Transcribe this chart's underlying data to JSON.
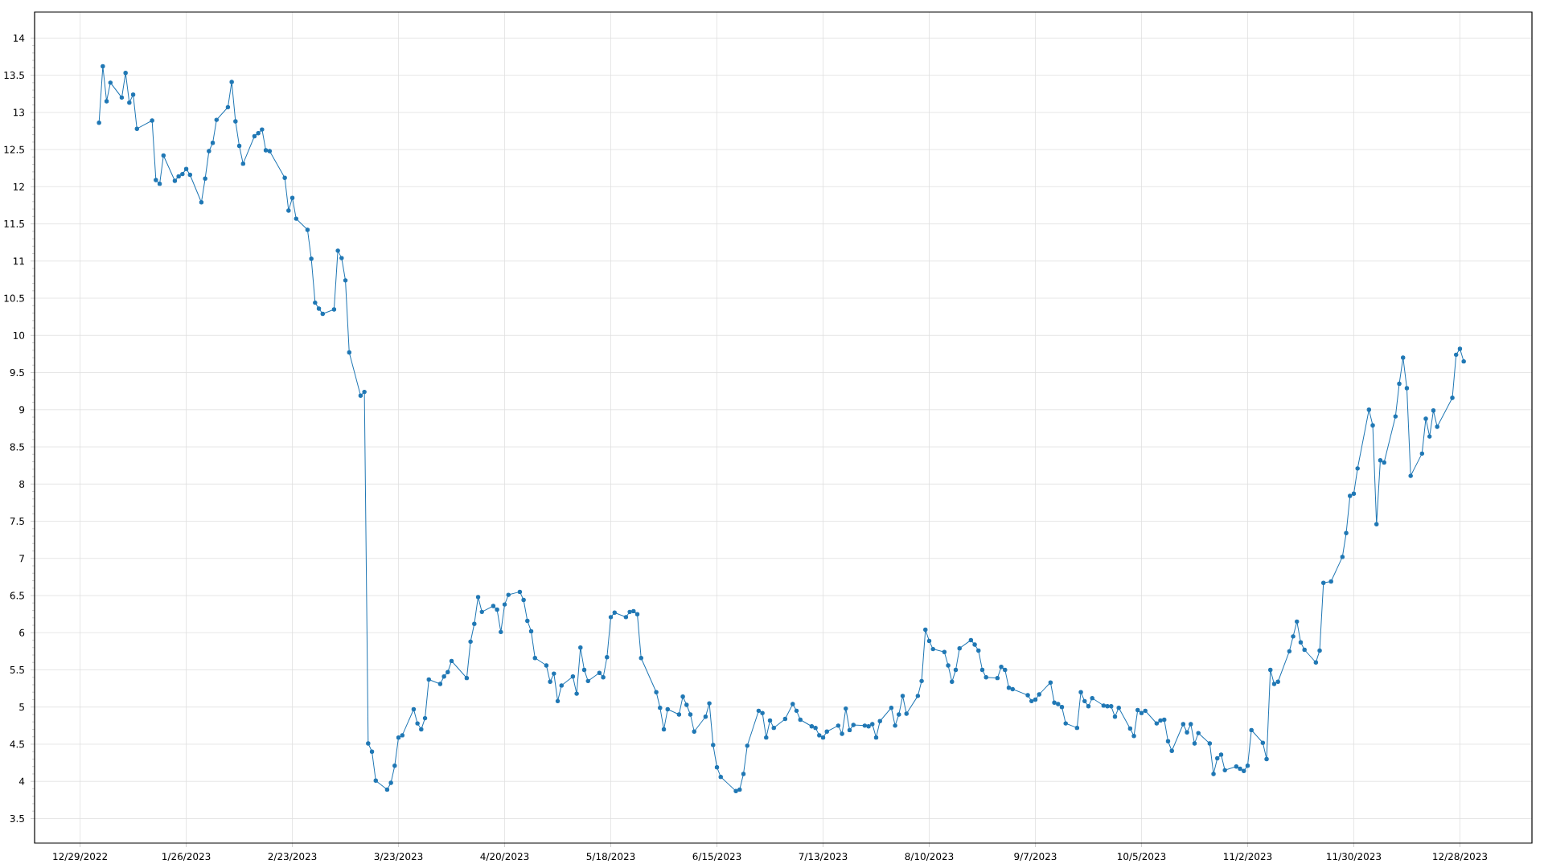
{
  "chart_data": {
    "type": "line",
    "color": "#1f77b4",
    "marker": "circle",
    "line_style": "solid",
    "grid": true,
    "xlim": [
      "2022-12-17",
      "2024-01-16"
    ],
    "ylim": [
      3.17,
      14.35
    ],
    "xticks": [
      {
        "value": "2022-12-29",
        "label": "12/29/2022"
      },
      {
        "value": "2023-01-26",
        "label": "1/26/2023"
      },
      {
        "value": "2023-02-23",
        "label": "2/23/2023"
      },
      {
        "value": "2023-03-23",
        "label": "3/23/2023"
      },
      {
        "value": "2023-04-20",
        "label": "4/20/2023"
      },
      {
        "value": "2023-05-18",
        "label": "5/18/2023"
      },
      {
        "value": "2023-06-15",
        "label": "6/15/2023"
      },
      {
        "value": "2023-07-13",
        "label": "7/13/2023"
      },
      {
        "value": "2023-08-10",
        "label": "8/10/2023"
      },
      {
        "value": "2023-09-07",
        "label": "9/7/2023"
      },
      {
        "value": "2023-10-05",
        "label": "10/5/2023"
      },
      {
        "value": "2023-11-02",
        "label": "11/2/2023"
      },
      {
        "value": "2023-11-30",
        "label": "11/30/2023"
      },
      {
        "value": "2023-12-28",
        "label": "12/28/2023"
      }
    ],
    "yticks": [
      3.5,
      4,
      4.5,
      5,
      5.5,
      6,
      6.5,
      7,
      7.5,
      8,
      8.5,
      9,
      9.5,
      10,
      10.5,
      11,
      11.5,
      12,
      12.5,
      13,
      13.5,
      14
    ],
    "x": [
      "2023-01-03",
      "2023-01-04",
      "2023-01-05",
      "2023-01-06",
      "2023-01-09",
      "2023-01-10",
      "2023-01-11",
      "2023-01-12",
      "2023-01-13",
      "2023-01-17",
      "2023-01-18",
      "2023-01-19",
      "2023-01-20",
      "2023-01-23",
      "2023-01-24",
      "2023-01-25",
      "2023-01-26",
      "2023-01-27",
      "2023-01-30",
      "2023-01-31",
      "2023-02-01",
      "2023-02-02",
      "2023-02-03",
      "2023-02-06",
      "2023-02-07",
      "2023-02-08",
      "2023-02-09",
      "2023-02-10",
      "2023-02-13",
      "2023-02-14",
      "2023-02-15",
      "2023-02-16",
      "2023-02-17",
      "2023-02-21",
      "2023-02-22",
      "2023-02-23",
      "2023-02-24",
      "2023-02-27",
      "2023-02-28",
      "2023-03-01",
      "2023-03-02",
      "2023-03-03",
      "2023-03-06",
      "2023-03-07",
      "2023-03-08",
      "2023-03-09",
      "2023-03-10",
      "2023-03-13",
      "2023-03-14",
      "2023-03-15",
      "2023-03-16",
      "2023-03-17",
      "2023-03-20",
      "2023-03-21",
      "2023-03-22",
      "2023-03-23",
      "2023-03-24",
      "2023-03-27",
      "2023-03-28",
      "2023-03-29",
      "2023-03-30",
      "2023-03-31",
      "2023-04-03",
      "2023-04-04",
      "2023-04-05",
      "2023-04-06",
      "2023-04-10",
      "2023-04-11",
      "2023-04-12",
      "2023-04-13",
      "2023-04-14",
      "2023-04-17",
      "2023-04-18",
      "2023-04-19",
      "2023-04-20",
      "2023-04-21",
      "2023-04-24",
      "2023-04-25",
      "2023-04-26",
      "2023-04-27",
      "2023-04-28",
      "2023-05-01",
      "2023-05-02",
      "2023-05-03",
      "2023-05-04",
      "2023-05-05",
      "2023-05-08",
      "2023-05-09",
      "2023-05-10",
      "2023-05-11",
      "2023-05-12",
      "2023-05-15",
      "2023-05-16",
      "2023-05-17",
      "2023-05-18",
      "2023-05-19",
      "2023-05-22",
      "2023-05-23",
      "2023-05-24",
      "2023-05-25",
      "2023-05-26",
      "2023-05-30",
      "2023-05-31",
      "2023-06-01",
      "2023-06-02",
      "2023-06-05",
      "2023-06-06",
      "2023-06-07",
      "2023-06-08",
      "2023-06-09",
      "2023-06-12",
      "2023-06-13",
      "2023-06-14",
      "2023-06-15",
      "2023-06-16",
      "2023-06-20",
      "2023-06-21",
      "2023-06-22",
      "2023-06-23",
      "2023-06-26",
      "2023-06-27",
      "2023-06-28",
      "2023-06-29",
      "2023-06-30",
      "2023-07-03",
      "2023-07-05",
      "2023-07-06",
      "2023-07-07",
      "2023-07-10",
      "2023-07-11",
      "2023-07-12",
      "2023-07-13",
      "2023-07-14",
      "2023-07-17",
      "2023-07-18",
      "2023-07-19",
      "2023-07-20",
      "2023-07-21",
      "2023-07-24",
      "2023-07-25",
      "2023-07-26",
      "2023-07-27",
      "2023-07-28",
      "2023-07-31",
      "2023-08-01",
      "2023-08-02",
      "2023-08-03",
      "2023-08-04",
      "2023-08-07",
      "2023-08-08",
      "2023-08-09",
      "2023-08-10",
      "2023-08-11",
      "2023-08-14",
      "2023-08-15",
      "2023-08-16",
      "2023-08-17",
      "2023-08-18",
      "2023-08-21",
      "2023-08-22",
      "2023-08-23",
      "2023-08-24",
      "2023-08-25",
      "2023-08-28",
      "2023-08-29",
      "2023-08-30",
      "2023-08-31",
      "2023-09-01",
      "2023-09-05",
      "2023-09-06",
      "2023-09-07",
      "2023-09-08",
      "2023-09-11",
      "2023-09-12",
      "2023-09-13",
      "2023-09-14",
      "2023-09-15",
      "2023-09-18",
      "2023-09-19",
      "2023-09-20",
      "2023-09-21",
      "2023-09-22",
      "2023-09-25",
      "2023-09-26",
      "2023-09-27",
      "2023-09-28",
      "2023-09-29",
      "2023-10-02",
      "2023-10-03",
      "2023-10-04",
      "2023-10-05",
      "2023-10-06",
      "2023-10-09",
      "2023-10-10",
      "2023-10-11",
      "2023-10-12",
      "2023-10-13",
      "2023-10-16",
      "2023-10-17",
      "2023-10-18",
      "2023-10-19",
      "2023-10-20",
      "2023-10-23",
      "2023-10-24",
      "2023-10-25",
      "2023-10-26",
      "2023-10-27",
      "2023-10-30",
      "2023-10-31",
      "2023-11-01",
      "2023-11-02",
      "2023-11-03",
      "2023-11-06",
      "2023-11-07",
      "2023-11-08",
      "2023-11-09",
      "2023-11-10",
      "2023-11-13",
      "2023-11-14",
      "2023-11-15",
      "2023-11-16",
      "2023-11-17",
      "2023-11-20",
      "2023-11-21",
      "2023-11-22",
      "2023-11-24",
      "2023-11-27",
      "2023-11-28",
      "2023-11-29",
      "2023-11-30",
      "2023-12-01",
      "2023-12-04",
      "2023-12-05",
      "2023-12-06",
      "2023-12-07",
      "2023-12-08",
      "2023-12-11",
      "2023-12-12",
      "2023-12-13",
      "2023-12-14",
      "2023-12-15",
      "2023-12-18",
      "2023-12-19",
      "2023-12-20",
      "2023-12-21",
      "2023-12-22",
      "2023-12-26",
      "2023-12-27",
      "2023-12-28",
      "2023-12-29"
    ],
    "values": [
      12.86,
      13.62,
      13.15,
      13.4,
      13.2,
      13.53,
      13.13,
      13.24,
      12.78,
      12.89,
      12.09,
      12.04,
      12.42,
      12.08,
      12.14,
      12.17,
      12.24,
      12.16,
      11.79,
      12.11,
      12.48,
      12.59,
      12.9,
      13.07,
      13.41,
      12.88,
      12.55,
      12.31,
      12.68,
      12.72,
      12.77,
      12.49,
      12.48,
      12.12,
      11.68,
      11.85,
      11.57,
      11.42,
      11.03,
      10.44,
      10.36,
      10.29,
      10.35,
      11.14,
      11.04,
      10.74,
      9.77,
      9.19,
      9.24,
      4.51,
      4.4,
      4.01,
      3.89,
      3.98,
      4.21,
      4.59,
      4.62,
      4.97,
      4.78,
      4.7,
      4.85,
      5.37,
      5.31,
      5.41,
      5.47,
      5.62,
      5.39,
      5.88,
      6.12,
      6.48,
      6.28,
      6.36,
      6.31,
      6.01,
      6.38,
      6.51,
      6.55,
      6.44,
      6.16,
      6.02,
      5.66,
      5.56,
      5.34,
      5.45,
      5.08,
      5.29,
      5.41,
      5.18,
      5.8,
      5.5,
      5.35,
      5.46,
      5.4,
      5.67,
      6.21,
      6.27,
      6.21,
      6.28,
      6.29,
      6.25,
      5.66,
      5.2,
      4.99,
      4.7,
      4.97,
      4.9,
      5.14,
      5.03,
      4.9,
      4.67,
      4.87,
      5.05,
      4.49,
      4.19,
      4.06,
      3.87,
      3.89,
      4.1,
      4.48,
      4.95,
      4.92,
      4.59,
      4.82,
      4.72,
      4.84,
      5.04,
      4.95,
      4.83,
      4.74,
      4.72,
      4.62,
      4.59,
      4.67,
      4.75,
      4.64,
      4.98,
      4.69,
      4.76,
      4.75,
      4.74,
      4.77,
      4.59,
      4.81,
      4.99,
      4.75,
      4.9,
      5.15,
      4.91,
      5.15,
      5.35,
      6.04,
      5.89,
      5.78,
      5.74,
      5.56,
      5.34,
      5.5,
      5.79,
      5.9,
      5.84,
      5.76,
      5.5,
      5.4,
      5.39,
      5.54,
      5.5,
      5.26,
      5.24,
      5.16,
      5.08,
      5.1,
      5.17,
      5.33,
      5.06,
      5.04,
      5.0,
      4.78,
      4.72,
      5.2,
      5.08,
      5.01,
      5.12,
      5.02,
      5.01,
      5.01,
      4.87,
      4.99,
      4.71,
      4.61,
      4.96,
      4.92,
      4.95,
      4.78,
      4.82,
      4.83,
      4.54,
      4.41,
      4.77,
      4.66,
      4.77,
      4.51,
      4.65,
      4.51,
      4.1,
      4.31,
      4.36,
      4.15,
      4.2,
      4.17,
      4.14,
      4.21,
      4.69,
      4.52,
      4.3,
      5.5,
      5.31,
      5.34,
      5.75,
      5.95,
      6.15,
      5.87,
      5.77,
      5.6,
      5.76,
      6.67,
      6.69,
      7.02,
      7.34,
      7.84,
      7.87,
      8.21,
      9.0,
      8.79,
      7.46,
      8.32,
      8.29,
      8.91,
      9.35,
      9.7,
      9.29,
      8.11,
      8.41,
      8.88,
      8.64,
      8.99,
      8.77,
      9.16,
      9.74,
      9.82,
      9.65
    ]
  }
}
